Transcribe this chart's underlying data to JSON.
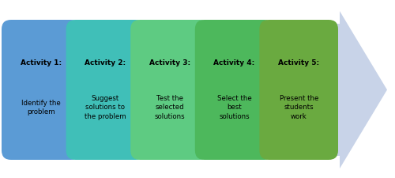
{
  "activities": [
    {
      "title": "Activity 1:",
      "body": "Identify the\nproblem"
    },
    {
      "title": "Activity 2:",
      "body": "Suggest\nsolutions to\nthe problem"
    },
    {
      "title": "Activity 3:",
      "body": "Test the\nselected\nsolutions"
    },
    {
      "title": "Activity 4:",
      "body": "Select the\nbest\nsolutions"
    },
    {
      "title": "Activity 5:",
      "body": "Present the\nstudents\nwork"
    }
  ],
  "activity_colors": [
    "#5b9bd5",
    "#40bfb8",
    "#5ecb82",
    "#4db85c",
    "#6aaa40"
  ],
  "arrow_color": "#c8d3e8",
  "background_color": "#ffffff",
  "figsize": [
    5.0,
    2.26
  ],
  "dpi": 100
}
